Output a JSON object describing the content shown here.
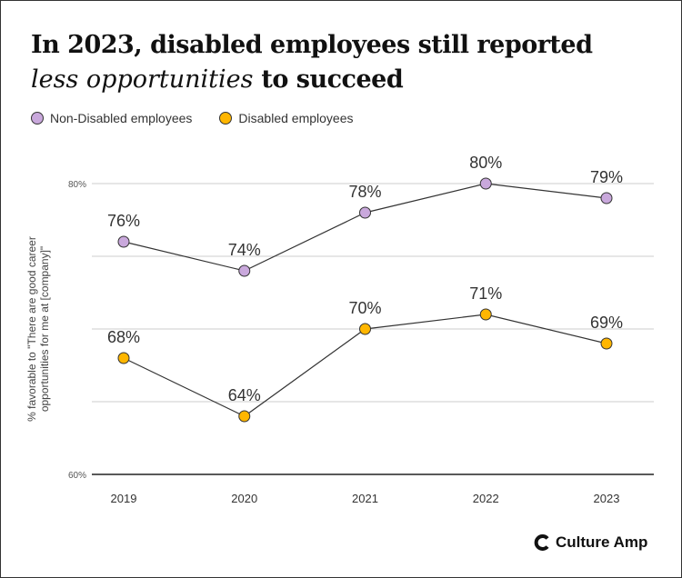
{
  "title_line1": "In 2023, disabled employees still reported",
  "title_emphasis": "less opportunities",
  "title_line2_rest": "to succeed",
  "brand": "Culture Amp",
  "chart_data": {
    "type": "line",
    "categories": [
      "2019",
      "2020",
      "2021",
      "2022",
      "2023"
    ],
    "series": [
      {
        "name": "Non-Disabled employees",
        "values": [
          76,
          74,
          78,
          80,
          79
        ],
        "labels": [
          "76%",
          "74%",
          "78%",
          "80%",
          "79%"
        ],
        "color": "#C9A8DC"
      },
      {
        "name": "Disabled employees",
        "values": [
          68,
          64,
          70,
          71,
          69
        ],
        "labels": [
          "68%",
          "64%",
          "70%",
          "71%",
          "69%"
        ],
        "color": "#FFB600"
      }
    ],
    "ylabel": "% favorable to \"There are good career opportunities for me at [company]\"",
    "ylabel_lines": [
      "% favorable to \"There are good career",
      "opportunities for me at [company]\""
    ],
    "ylim": [
      60,
      80
    ],
    "yticks": [
      60,
      65,
      70,
      75,
      80
    ],
    "ytick_labels": {
      "60": "60%",
      "80": "80%"
    },
    "grid": true,
    "legend": "top-left"
  }
}
